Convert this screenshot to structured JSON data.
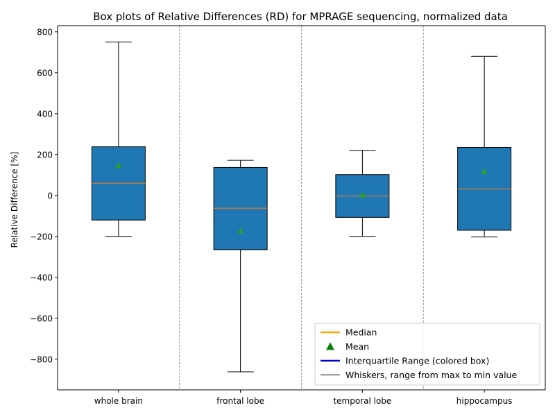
{
  "chart_data": {
    "type": "box",
    "title": "Box plots of Relative Differences (RD) for MPRAGE sequencing, normalized data",
    "xlabel": "",
    "ylabel": "Relative Difference [%]",
    "ylim": [
      -950,
      830
    ],
    "yticks": [
      -800,
      -600,
      -400,
      -200,
      0,
      200,
      400,
      600,
      800
    ],
    "ytick_labels": [
      "−800",
      "−600",
      "−400",
      "−200",
      "0",
      "200",
      "400",
      "600",
      "800"
    ],
    "categories": [
      "whole brain",
      "frontal lobe",
      "temporal lobe",
      "hippocampus"
    ],
    "boxes": [
      {
        "min": -200,
        "q1": -120,
        "median": 60,
        "q3": 238,
        "max": 750,
        "mean": 148
      },
      {
        "min": -862,
        "q1": -265,
        "median": -62,
        "q3": 137,
        "max": 172,
        "mean": -172
      },
      {
        "min": -200,
        "q1": -107,
        "median": -2,
        "q3": 102,
        "max": 220,
        "mean": 3
      },
      {
        "min": -203,
        "q1": -170,
        "median": 32,
        "q3": 235,
        "max": 680,
        "mean": 118
      }
    ],
    "grid": false,
    "separators": true,
    "legend_position": "lower-right",
    "legend": [
      {
        "label": "Median",
        "kind": "line",
        "color": "#ffa500"
      },
      {
        "label": "Mean",
        "kind": "triangle",
        "color": "#008000"
      },
      {
        "label": "Interquartile Range (colored box)",
        "kind": "line",
        "color": "#0000cd"
      },
      {
        "label": "Whiskers, range from max to min value",
        "kind": "thin-line",
        "color": "#000000"
      }
    ],
    "colors": {
      "box_fill": "#1f77b4",
      "median_line": "#ff7f0e",
      "mean_marker": "#2ca02c",
      "whisker": "#000000",
      "separator": "#808080"
    }
  }
}
